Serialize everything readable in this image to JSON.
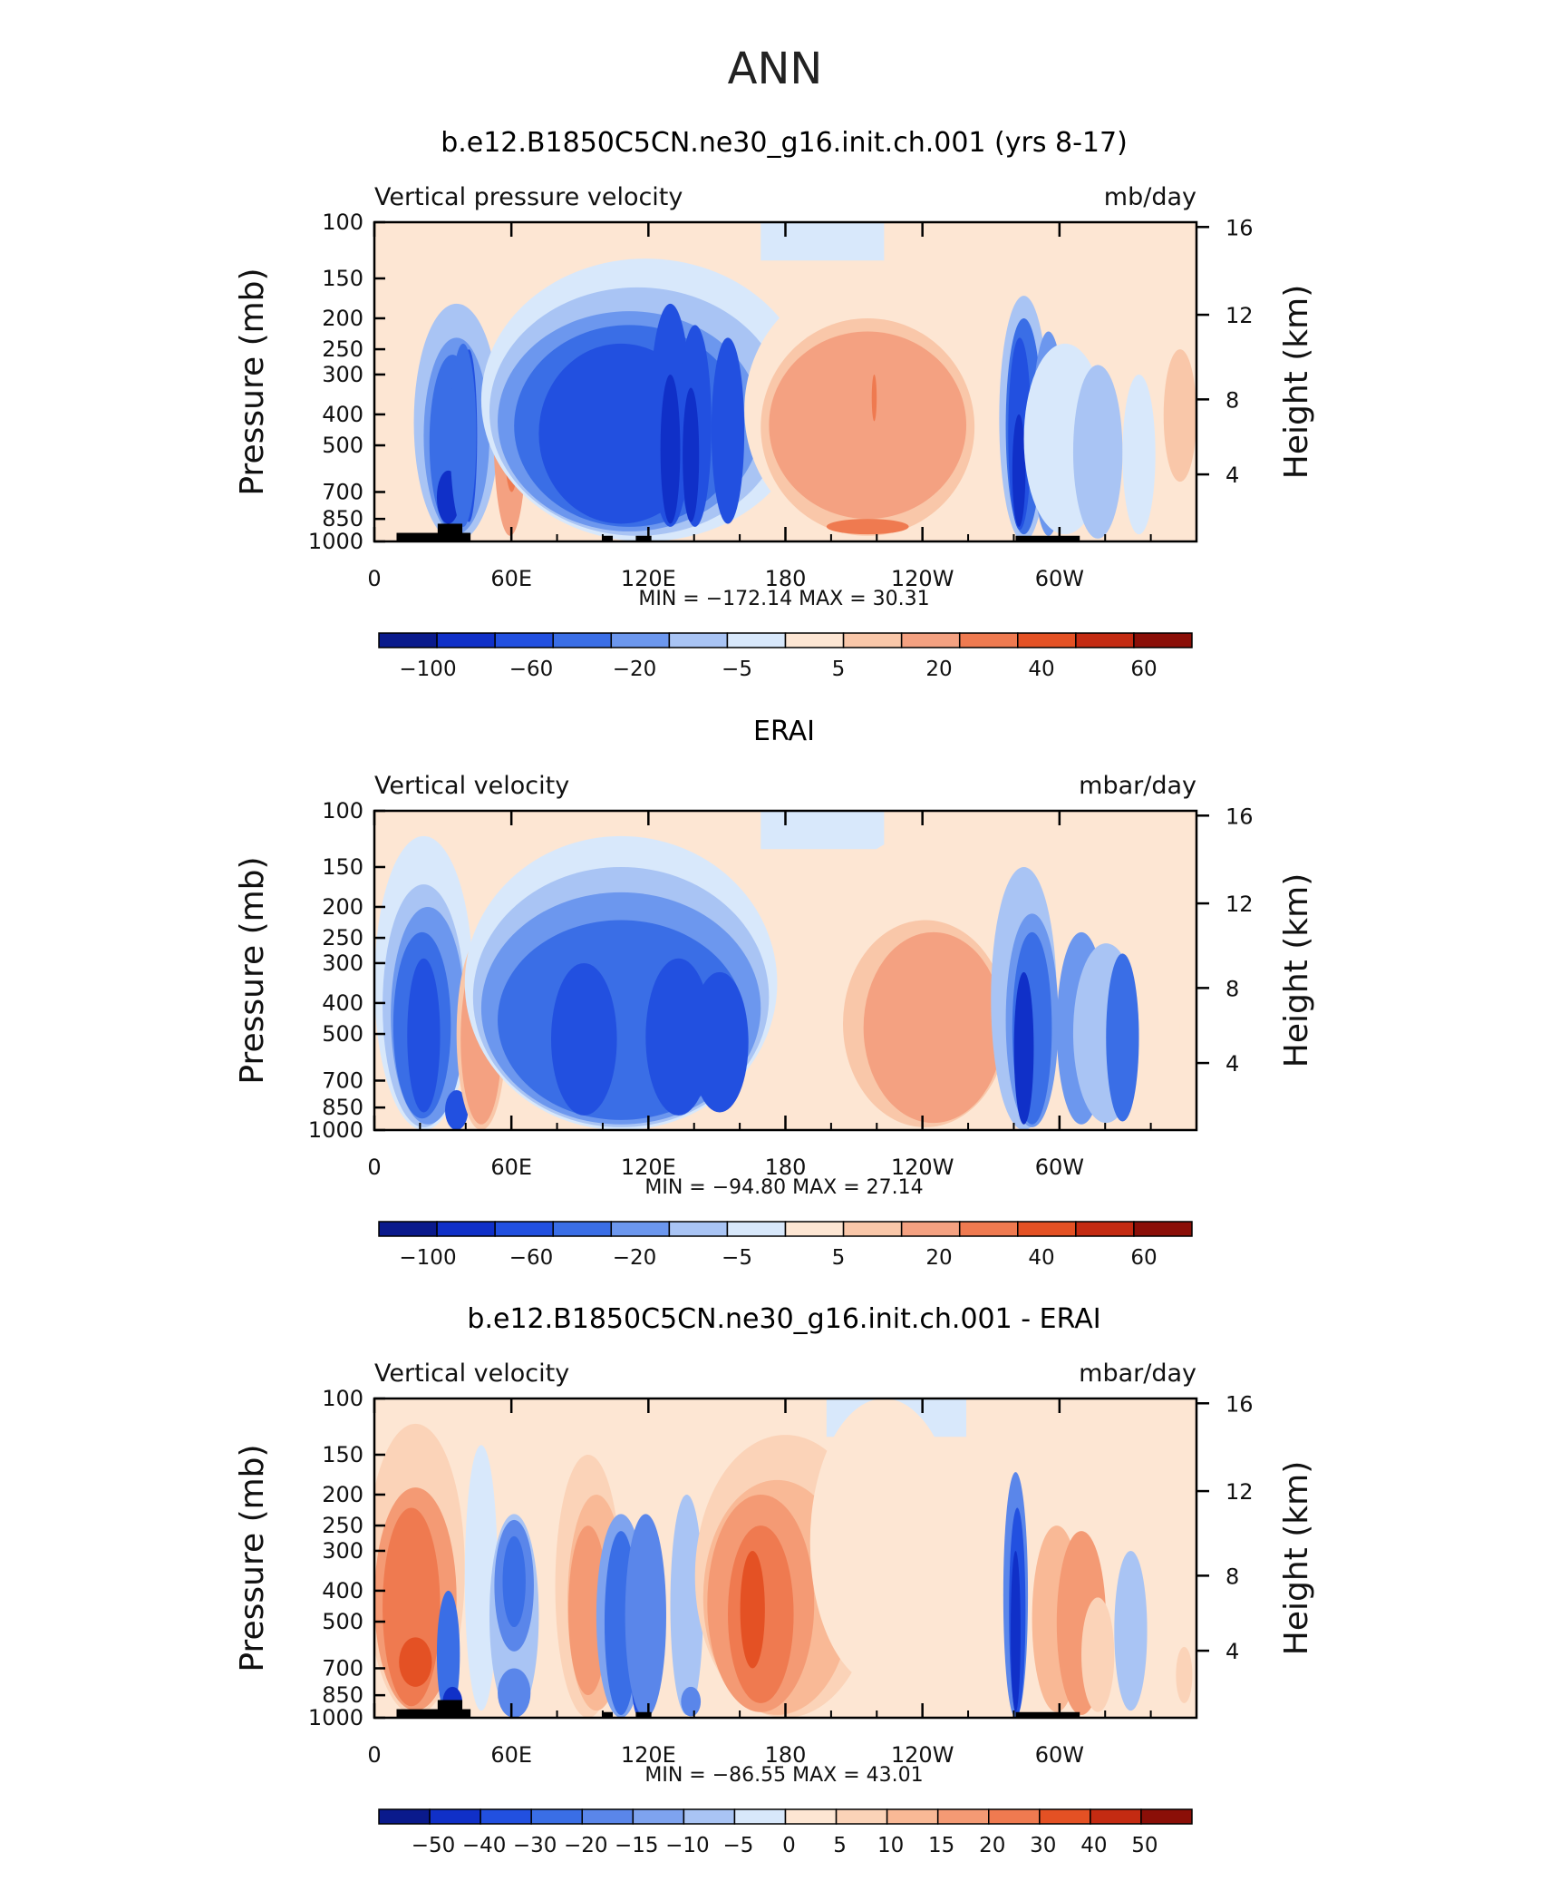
{
  "page_title": "ANN",
  "chart_data": [
    {
      "type": "heatmap",
      "title": "b.e12.B1850C5CN.ne30_g16.init.ch.001 (yrs 8-17)",
      "subtitle_left": "Vertical pressure velocity",
      "subtitle_right": "mb/day",
      "ylabel": "Pressure (mb)",
      "y2label": "Height (km)",
      "x_ticks": [
        "0",
        "60E",
        "120E",
        "180",
        "120W",
        "60W"
      ],
      "y_ticks": [
        "100",
        "150",
        "200",
        "250",
        "300",
        "400",
        "500",
        "700",
        "850",
        "1000"
      ],
      "y2_ticks": [
        "16",
        "12",
        "8",
        "4"
      ],
      "stats": "MIN = −172.14   MAX =   30.31",
      "min": -172.14,
      "max": 30.31,
      "colorbar_labels": [
        "−100",
        "−60",
        "−20",
        "−5",
        "5",
        "20",
        "40",
        "60"
      ],
      "colors": [
        "#0a1a8c",
        "#1030c8",
        "#2250e0",
        "#3a6ee6",
        "#6c97ee",
        "#a9c4f4",
        "#d8e8fb",
        "#fde6d3",
        "#f9c7a9",
        "#f4a181",
        "#ef7a50",
        "#e45124",
        "#c42b12",
        "#8b0f08"
      ]
    },
    {
      "type": "heatmap",
      "title": "ERAI",
      "subtitle_left": "Vertical velocity",
      "subtitle_right": "mbar/day",
      "ylabel": "Pressure (mb)",
      "y2label": "Height (km)",
      "x_ticks": [
        "0",
        "60E",
        "120E",
        "180",
        "120W",
        "60W"
      ],
      "y_ticks": [
        "100",
        "150",
        "200",
        "250",
        "300",
        "400",
        "500",
        "700",
        "850",
        "1000"
      ],
      "y2_ticks": [
        "16",
        "12",
        "8",
        "4"
      ],
      "stats": "MIN = −94.80   MAX =   27.14",
      "min": -94.8,
      "max": 27.14,
      "colorbar_labels": [
        "−100",
        "−60",
        "−20",
        "−5",
        "5",
        "20",
        "40",
        "60"
      ],
      "colors": [
        "#0a1a8c",
        "#1030c8",
        "#2250e0",
        "#3a6ee6",
        "#6c97ee",
        "#a9c4f4",
        "#d8e8fb",
        "#fde6d3",
        "#f9c7a9",
        "#f4a181",
        "#ef7a50",
        "#e45124",
        "#c42b12",
        "#8b0f08"
      ]
    },
    {
      "type": "heatmap",
      "title": "b.e12.B1850C5CN.ne30_g16.init.ch.001 - ERAI",
      "subtitle_left": "Vertical velocity",
      "subtitle_right": "mbar/day",
      "ylabel": "Pressure (mb)",
      "y2label": "Height (km)",
      "x_ticks": [
        "0",
        "60E",
        "120E",
        "180",
        "120W",
        "60W"
      ],
      "y_ticks": [
        "100",
        "150",
        "200",
        "250",
        "300",
        "400",
        "500",
        "700",
        "850",
        "1000"
      ],
      "y2_ticks": [
        "16",
        "12",
        "8",
        "4"
      ],
      "stats": "MIN =  −86.55   MAX =   43.01",
      "min": -86.55,
      "max": 43.01,
      "colorbar_labels": [
        "−50",
        "−40",
        "−30",
        "−20",
        "−15",
        "−10",
        "−5",
        "0",
        "5",
        "10",
        "15",
        "20",
        "30",
        "40",
        "50"
      ],
      "colors": [
        "#0a1a8c",
        "#1030c8",
        "#2250e0",
        "#3a6ee6",
        "#5a86ea",
        "#7ea3ef",
        "#a9c4f4",
        "#d8e8fb",
        "#fde6d3",
        "#fbd3b8",
        "#f9b996",
        "#f49a74",
        "#ef7a50",
        "#e45124",
        "#c42b12",
        "#8b0f08"
      ]
    }
  ]
}
